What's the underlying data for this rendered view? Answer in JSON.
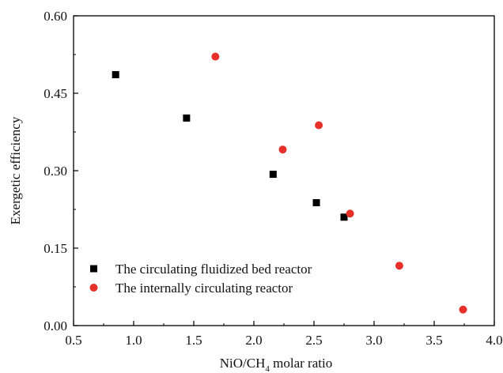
{
  "chart_data": {
    "type": "scatter",
    "title": "",
    "xlabel": {
      "main": "NiO/CH",
      "sub": "4",
      "tail": " molar ratio"
    },
    "ylabel": "Exergetic efficiency",
    "xlim": [
      0.5,
      4.0
    ],
    "ylim": [
      0.0,
      0.6
    ],
    "xticks": [
      "0.5",
      "1.0",
      "1.5",
      "2.0",
      "2.5",
      "3.0",
      "3.5",
      "4.0"
    ],
    "yticks": [
      "0.00",
      "0.15",
      "0.30",
      "0.45",
      "0.60"
    ],
    "grid": false,
    "legend_position": "bottom-left",
    "series": [
      {
        "name": "The circulating fluidized bed reactor",
        "marker": "square",
        "color": "#000000",
        "x": [
          0.85,
          1.44,
          2.16,
          2.52,
          2.75
        ],
        "y": [
          0.486,
          0.402,
          0.293,
          0.238,
          0.21
        ]
      },
      {
        "name": "The internally circulating reactor",
        "marker": "circle",
        "color": "#e8302a",
        "x": [
          1.68,
          2.24,
          2.54,
          2.8,
          3.21,
          3.74
        ],
        "y": [
          0.521,
          0.341,
          0.388,
          0.217,
          0.116,
          0.031
        ]
      }
    ]
  }
}
